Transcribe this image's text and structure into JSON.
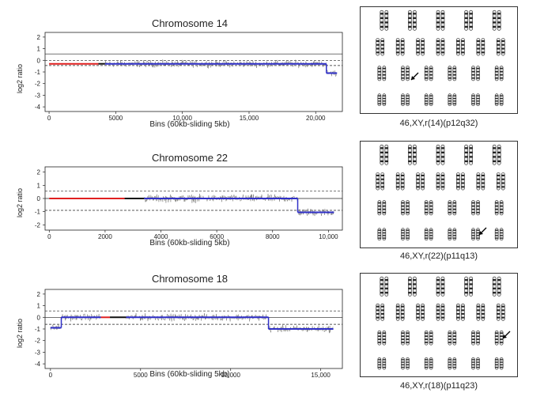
{
  "figure": {
    "panels": [
      {
        "title": "Chromosome 14",
        "ylabel": "log2 ratio",
        "xlabel": "Bins (60kb-sliding 5kb)",
        "karyotype_caption": "46,XY,r(14)(p12q32)"
      },
      {
        "title": "Chromosome 22",
        "ylabel": "log2 ratio",
        "xlabel": "Bins (60kb-sliding 5kb)",
        "karyotype_caption": "46,XY,r(22)(p11q13)"
      },
      {
        "title": "Chromosome 18",
        "ylabel": "log2 ratio",
        "xlabel": "Bins (60kb-sliding 5kb)",
        "karyotype_caption": "46,XY,r(18)(p11q23)"
      }
    ]
  },
  "chart_data": [
    {
      "type": "line",
      "title": "Chromosome 14",
      "xlabel": "Bins (60kb-sliding 5kb)",
      "ylabel": "log2 ratio",
      "xlim": [
        -300,
        22000
      ],
      "ylim": [
        -4.4,
        2.4
      ],
      "xticks": [
        0,
        5000,
        10000,
        15000,
        20000
      ],
      "xticklabels": [
        "0",
        "5000",
        "10,000",
        "15,000",
        "20,000"
      ],
      "yticks": [
        2,
        1,
        0,
        -1,
        -2,
        -3,
        -4
      ],
      "ref_lines": {
        "solid": 0.55,
        "dashed": [
          0.0,
          -0.45
        ]
      },
      "segments": [
        {
          "x0": 0,
          "x1": 3700,
          "y": -0.3,
          "color": "#e02020"
        },
        {
          "x0": 3700,
          "x1": 4200,
          "y": -0.3,
          "color": "#111111"
        },
        {
          "x0": 4200,
          "x1": 20800,
          "y": -0.3,
          "color": "#3030c8"
        },
        {
          "x0": 20800,
          "x1": 21600,
          "y": -1.1,
          "color": "#3030c8"
        }
      ]
    },
    {
      "type": "line",
      "title": "Chromosome 22",
      "xlabel": "Bins (60kb-sliding 5kb)",
      "ylabel": "log2 ratio",
      "xlim": [
        -150,
        10500
      ],
      "ylim": [
        -2.4,
        2.4
      ],
      "xticks": [
        0,
        2000,
        4000,
        6000,
        8000,
        10000
      ],
      "xticklabels": [
        "0",
        "2000",
        "4000",
        "6000",
        "8000",
        "10,000"
      ],
      "yticks": [
        2,
        1,
        0,
        -1,
        -2
      ],
      "ref_lines": {
        "solid": 0.0,
        "dashed": [
          0.55,
          -0.9
        ]
      },
      "segments": [
        {
          "x0": 0,
          "x1": 2700,
          "y": 0.0,
          "color": "#e02020"
        },
        {
          "x0": 2700,
          "x1": 3400,
          "y": 0.0,
          "color": "#111111"
        },
        {
          "x0": 3400,
          "x1": 8900,
          "y": 0.0,
          "color": "#3030c8"
        },
        {
          "x0": 8900,
          "x1": 10200,
          "y": -1.05,
          "color": "#3030c8"
        }
      ]
    },
    {
      "type": "line",
      "title": "Chromosome 18",
      "xlabel": "Bins (60kb-sliding 5kb)",
      "ylabel": "log2 ratio",
      "xlim": [
        -300,
        16200
      ],
      "ylim": [
        -4.4,
        2.4
      ],
      "xticks": [
        0,
        5000,
        10000,
        15000
      ],
      "xticklabels": [
        "0",
        "5000",
        "10,000",
        "15,000"
      ],
      "yticks": [
        2,
        1,
        0,
        -1,
        -2,
        -3,
        -4
      ],
      "ref_lines": {
        "solid": 0.0,
        "dashed": [
          0.55,
          -0.6
        ]
      },
      "segments": [
        {
          "x0": 0,
          "x1": 600,
          "y": -0.9,
          "color": "#3030c8"
        },
        {
          "x0": 600,
          "x1": 2800,
          "y": 0.0,
          "color": "#3030c8"
        },
        {
          "x0": 2800,
          "x1": 3300,
          "y": 0.0,
          "color": "#e02020"
        },
        {
          "x0": 3300,
          "x1": 4200,
          "y": 0.0,
          "color": "#111111"
        },
        {
          "x0": 4200,
          "x1": 12100,
          "y": 0.0,
          "color": "#3030c8"
        },
        {
          "x0": 12100,
          "x1": 15700,
          "y": -1.0,
          "color": "#3030c8"
        }
      ]
    }
  ]
}
